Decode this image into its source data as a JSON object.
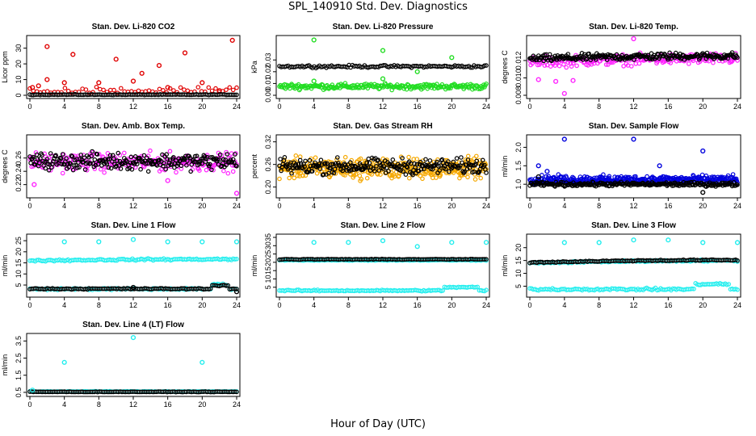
{
  "figure": {
    "title": "SPL_140910  Std. Dev. Diagnostics",
    "xlabel": "Hour of Day (UTC)"
  },
  "colors": {
    "red": "#e00000",
    "green": "#22dd22",
    "magenta": "#ff22ff",
    "orange": "#f5a800",
    "blue": "#0000dd",
    "cyan": "#22eeee",
    "black": "#000000"
  },
  "chart_data": [
    {
      "type": "scatter",
      "title": "Stan. Dev. Li-820 CO2",
      "ylabel": "Licor ppm",
      "xlim": [
        0,
        24
      ],
      "ylim": [
        0,
        36
      ],
      "xticks": [
        "0",
        "4",
        "8",
        "12",
        "16",
        "20",
        "24"
      ],
      "yticks": [
        "0",
        "10",
        "20",
        "30"
      ],
      "series": [
        {
          "color": "red",
          "pattern": "sparse",
          "base": 1.5,
          "spread": 5,
          "highlights": [
            [
              2,
              31
            ],
            [
              5,
              26
            ],
            [
              2,
              10
            ],
            [
              10,
              23
            ],
            [
              13,
              14
            ],
            [
              15,
              19
            ],
            [
              18,
              27
            ],
            [
              20,
              8
            ],
            [
              23.5,
              35
            ],
            [
              4,
              8
            ],
            [
              8,
              8
            ],
            [
              12,
              9
            ],
            [
              16,
              5
            ],
            [
              22,
              3
            ],
            [
              1,
              6
            ],
            [
              0.3,
              5
            ]
          ]
        },
        {
          "color": "black",
          "pattern": "flat",
          "base": 0.4,
          "spread": 0.3
        }
      ]
    },
    {
      "type": "scatter",
      "title": "Stan. Dev. Li-820 Pressure",
      "ylabel": "kPa",
      "xlim": [
        0,
        24
      ],
      "ylim": [
        0,
        0.048
      ],
      "xticks": [
        "0",
        "4",
        "8",
        "12",
        "16",
        "20",
        "24"
      ],
      "yticks": [
        "0.00",
        "0.01",
        "0.02",
        "0.03"
      ],
      "series": [
        {
          "color": "black",
          "pattern": "flat",
          "base": 0.0245,
          "spread": 0.0015
        },
        {
          "color": "green",
          "pattern": "band",
          "base": 0.0075,
          "spread": 0.0035,
          "highlights": [
            [
              4,
              0.047
            ],
            [
              12,
              0.038
            ],
            [
              16,
              0.02
            ],
            [
              20,
              0.032
            ],
            [
              4,
              0.012
            ],
            [
              12,
              0.014
            ]
          ]
        }
      ]
    },
    {
      "type": "scatter",
      "title": "Stan. Dev. Li-820 Temp.",
      "ylabel": "degrees C",
      "xlim": [
        0,
        24
      ],
      "ylim": [
        0.008,
        0.0145
      ],
      "xticks": [
        "0",
        "4",
        "8",
        "12",
        "16",
        "20",
        "24"
      ],
      "yticks": [
        "0.008",
        "0.010",
        "0.012"
      ],
      "series": [
        {
          "color": "magenta",
          "pattern": "band",
          "base": 0.0118,
          "spread": 0.0009,
          "trend": 0.0005,
          "highlights": [
            [
              4,
              0.0082
            ],
            [
              12,
              0.0145
            ],
            [
              1,
              0.0098
            ],
            [
              3,
              0.0096
            ],
            [
              5,
              0.0097
            ]
          ]
        },
        {
          "color": "black",
          "pattern": "band",
          "base": 0.0122,
          "spread": 0.0006,
          "trend": 0.0004
        }
      ]
    },
    {
      "type": "scatter",
      "title": "Stan. Dev. Amb. Box Temp.",
      "ylabel": "degrees C",
      "xlim": [
        0,
        24
      ],
      "ylim": [
        0.205,
        0.29
      ],
      "xticks": [
        "0",
        "4",
        "8",
        "12",
        "16",
        "20",
        "24"
      ],
      "yticks": [
        "0.22",
        "0.24",
        "0.26"
      ],
      "series": [
        {
          "color": "magenta",
          "pattern": "band",
          "base": 0.254,
          "spread": 0.02,
          "highlights": [
            [
              24,
              0.207
            ],
            [
              0.5,
              0.22
            ],
            [
              16,
              0.226
            ]
          ]
        },
        {
          "color": "black",
          "pattern": "band",
          "base": 0.255,
          "spread": 0.018
        }
      ]
    },
    {
      "type": "scatter",
      "title": "Stan. Dev. Gas Stream RH",
      "ylabel": "percent",
      "xlim": [
        0,
        24
      ],
      "ylim": [
        0.18,
        0.33
      ],
      "xticks": [
        "0",
        "4",
        "8",
        "12",
        "16",
        "20",
        "24"
      ],
      "yticks": [
        "0.20",
        "0.26",
        "0.32"
      ],
      "series": [
        {
          "color": "orange",
          "pattern": "dense",
          "base": 0.25,
          "spread": 0.04
        },
        {
          "color": "black",
          "pattern": "band",
          "base": 0.255,
          "spread": 0.03
        }
      ]
    },
    {
      "type": "scatter",
      "title": "Stan. Dev. Sample Flow",
      "ylabel": "ml/min",
      "xlim": [
        0,
        24
      ],
      "ylim": [
        0.72,
        2.25
      ],
      "xticks": [
        "0",
        "4",
        "8",
        "12",
        "16",
        "20",
        "24"
      ],
      "yticks": [
        "1.0",
        "1.5",
        "2.0"
      ],
      "series": [
        {
          "color": "blue",
          "pattern": "dense",
          "base": 1.12,
          "spread": 0.17,
          "highlights": [
            [
              4,
              2.22
            ],
            [
              12,
              2.22
            ],
            [
              20,
              1.9
            ],
            [
              1,
              1.5
            ],
            [
              15,
              1.5
            ],
            [
              2,
              1.35
            ]
          ]
        },
        {
          "color": "black",
          "pattern": "band",
          "base": 1.0,
          "spread": 0.08,
          "highlights": [
            [
              20,
              0.78
            ],
            [
              1,
              1.2
            ]
          ]
        }
      ]
    },
    {
      "type": "scatter",
      "title": "Stan. Dev. Line 1 Flow",
      "ylabel": "ml/min",
      "xlim": [
        0,
        24
      ],
      "ylim": [
        1,
        26.5
      ],
      "xticks": [
        "0",
        "4",
        "8",
        "12",
        "16",
        "20",
        "24"
      ],
      "yticks": [
        "5",
        "10",
        "15",
        "20",
        "25"
      ],
      "series": [
        {
          "color": "cyan",
          "pattern": "flat",
          "base": 16,
          "spread": 0.6,
          "trend": 0.8
        },
        {
          "color": "cyan",
          "pattern": "flat",
          "base": 3.2,
          "spread": 0.6,
          "bump": [
            21,
            23,
            2
          ]
        },
        {
          "color": "black",
          "pattern": "flat",
          "base": 3.3,
          "spread": 0.4,
          "bump": [
            21,
            23,
            1.5
          ],
          "highlights": [
            [
              12,
              3.9
            ],
            [
              24,
              2
            ]
          ]
        },
        {
          "color": "cyan",
          "pattern": "sparse-only",
          "highlights": [
            [
              4,
              24.5
            ],
            [
              8,
              24.5
            ],
            [
              12,
              25.5
            ],
            [
              16,
              24.5
            ],
            [
              20,
              24.5
            ],
            [
              24,
              24.5
            ]
          ]
        }
      ]
    },
    {
      "type": "scatter",
      "title": "Stan. Dev. Line 2 Flow",
      "ylabel": "ml/min",
      "xlim": [
        0,
        24
      ],
      "ylim": [
        1,
        35
      ],
      "xticks": [
        "0",
        "4",
        "8",
        "12",
        "16",
        "20",
        "24"
      ],
      "yticks": [
        "5",
        "10",
        "15",
        "20",
        "25",
        "30",
        "35"
      ],
      "series": [
        {
          "color": "cyan",
          "pattern": "flat",
          "base": 3,
          "spread": 0.6,
          "bump": [
            19,
            23,
            2
          ]
        },
        {
          "color": "cyan",
          "pattern": "flat",
          "base": 21.3,
          "spread": 0.4
        },
        {
          "color": "black",
          "pattern": "flat",
          "base": 21.8,
          "spread": 0.3
        },
        {
          "color": "cyan",
          "pattern": "sparse-only",
          "highlights": [
            [
              4,
              32
            ],
            [
              8,
              32
            ],
            [
              12,
              33
            ],
            [
              16,
              29.5
            ],
            [
              20,
              32
            ],
            [
              24,
              32
            ]
          ]
        }
      ]
    },
    {
      "type": "scatter",
      "title": "Stan. Dev. Line 3 Flow",
      "ylabel": "ml/min",
      "xlim": [
        0,
        24
      ],
      "ylim": [
        2,
        24
      ],
      "xticks": [
        "0",
        "4",
        "8",
        "12",
        "16",
        "20",
        "24"
      ],
      "yticks": [
        "5",
        "10",
        "15",
        "20"
      ],
      "series": [
        {
          "color": "cyan",
          "pattern": "flat",
          "base": 3.8,
          "spread": 0.6,
          "bump": [
            19,
            23,
            2
          ]
        },
        {
          "color": "cyan",
          "pattern": "flat",
          "base": 14,
          "spread": 0.5,
          "trend": 1.2
        },
        {
          "color": "black",
          "pattern": "flat",
          "base": 14.2,
          "spread": 0.35,
          "trend": 1.2
        },
        {
          "color": "cyan",
          "pattern": "sparse-only",
          "highlights": [
            [
              4,
              22
            ],
            [
              8,
              22
            ],
            [
              12,
              23
            ],
            [
              16,
              23
            ],
            [
              20,
              22
            ],
            [
              24,
              22
            ]
          ]
        }
      ]
    },
    {
      "type": "scatter",
      "title": "Stan. Dev. Line 4 (LT) Flow",
      "ylabel": "ml/min",
      "xlim": [
        0,
        24
      ],
      "ylim": [
        0.45,
        3.75
      ],
      "xticks": [
        "0",
        "4",
        "8",
        "12",
        "16",
        "20",
        "24"
      ],
      "yticks": [
        "0.5",
        "1.5",
        "2.5",
        "3.5"
      ],
      "series": [
        {
          "color": "cyan",
          "pattern": "flat",
          "base": 0.55,
          "spread": 0.02
        },
        {
          "color": "black",
          "pattern": "flat",
          "base": 0.53,
          "spread": 0.02
        },
        {
          "color": "cyan",
          "pattern": "sparse-only",
          "highlights": [
            [
              4,
              2.25
            ],
            [
              12,
              3.7
            ],
            [
              20,
              2.25
            ],
            [
              0.3,
              0.63
            ]
          ]
        }
      ]
    }
  ]
}
